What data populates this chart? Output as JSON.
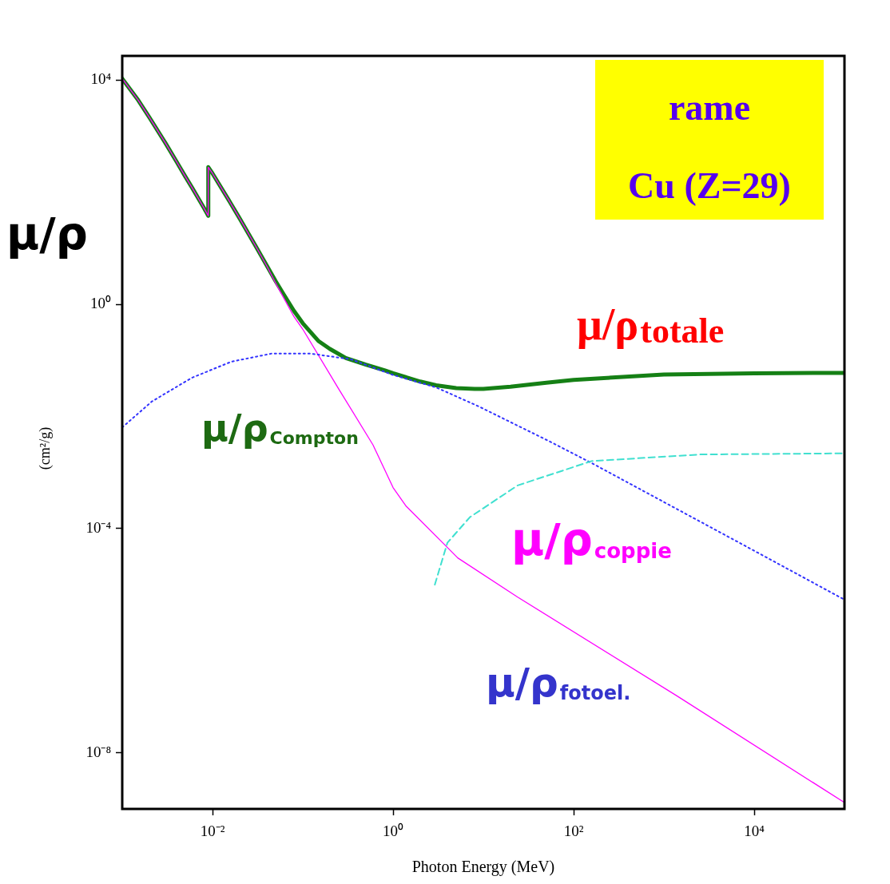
{
  "chart_data": {
    "type": "line",
    "xlabel": "Photon Energy (MeV)",
    "ylabel": "(cm²/g)",
    "log": "xy",
    "grid": false,
    "legend": false,
    "marker": "none",
    "xlim": [
      0.001,
      100000
    ],
    "ylim": [
      1e-09,
      27000
    ],
    "xticks": [
      {
        "value": 0.01,
        "label": "10⁻²"
      },
      {
        "value": 1,
        "label": "10⁰"
      },
      {
        "value": 100,
        "label": "10²"
      },
      {
        "value": 10000,
        "label": "10⁴"
      }
    ],
    "yticks": [
      {
        "value": 1e-08,
        "label": "10⁻⁸"
      },
      {
        "value": 0.0001,
        "label": "10⁻⁴"
      },
      {
        "value": 1,
        "label": "10⁰"
      },
      {
        "value": 10000,
        "label": "10⁴"
      }
    ],
    "series": [
      {
        "color": "#158015",
        "line_style": "solid",
        "x": [
          0.001,
          0.0015,
          0.002,
          0.003,
          0.004,
          0.005,
          0.006,
          0.008,
          0.00898,
          0.00898,
          0.01,
          0.015,
          0.02,
          0.03,
          0.04,
          0.05,
          0.06,
          0.08,
          0.1,
          0.15,
          0.2,
          0.3,
          0.5,
          0.8,
          1,
          2,
          3,
          5,
          8,
          10,
          20,
          50,
          100,
          1000,
          10000,
          100000
        ],
        "values": [
          10600,
          4400,
          2150,
          760,
          350,
          190,
          117,
          53,
          38,
          280,
          216,
          74,
          34,
          11,
          4.9,
          2.6,
          1.6,
          0.76,
          0.46,
          0.22,
          0.16,
          0.11,
          0.084,
          0.067,
          0.059,
          0.042,
          0.036,
          0.032,
          0.031,
          0.031,
          0.034,
          0.04,
          0.045,
          0.056,
          0.059,
          0.06
        ]
      },
      {
        "color": "#ff00ff",
        "line_style": "solid",
        "x": [
          0.001,
          0.0015,
          0.002,
          0.003,
          0.004,
          0.005,
          0.006,
          0.008,
          0.00898,
          0.00898,
          0.01,
          0.015,
          0.02,
          0.03,
          0.04,
          0.05,
          0.06,
          0.08,
          0.1,
          0.25,
          0.6,
          1,
          1.4,
          4,
          5.2,
          24,
          1380,
          100000
        ],
        "values": [
          10600,
          4400,
          2150,
          760,
          350,
          190,
          117,
          53,
          38,
          280,
          216,
          74,
          34,
          11,
          4.8,
          2.4,
          1.4,
          0.6,
          0.36,
          0.031,
          0.0031,
          0.00054,
          0.00025,
          4.6e-05,
          3e-05,
          6e-06,
          1.05e-07,
          1.3e-09
        ]
      },
      {
        "color": "#3333ff",
        "line_style": "dotted",
        "x": [
          0.001,
          0.00214,
          0.0059,
          0.0162,
          0.0447,
          0.123,
          0.339,
          1,
          3,
          8.9,
          54,
          158,
          11750,
          100000
        ],
        "values": [
          0.0064,
          0.0186,
          0.049,
          0.095,
          0.132,
          0.132,
          0.105,
          0.055,
          0.033,
          0.0151,
          0.0036,
          0.00148,
          3.5e-05,
          5.4e-06
        ]
      },
      {
        "color": "#40e0d0",
        "line_style": "dashed",
        "x": [
          2.9,
          4,
          7.1,
          24,
          158,
          2500,
          100000
        ],
        "values": [
          1e-05,
          5.6e-05,
          0.00016,
          0.00059,
          0.0016,
          0.0021,
          0.0022
        ]
      }
    ],
    "annotations": [
      "rame",
      "Cu (Z=29)",
      "μ/ρ",
      "μ/ρ$_{totale}$",
      "μ/ρ$_{Compton}$",
      "μ/ρ$_{coppie}$",
      "μ/ρ$_{fotoel.}$"
    ]
  }
}
